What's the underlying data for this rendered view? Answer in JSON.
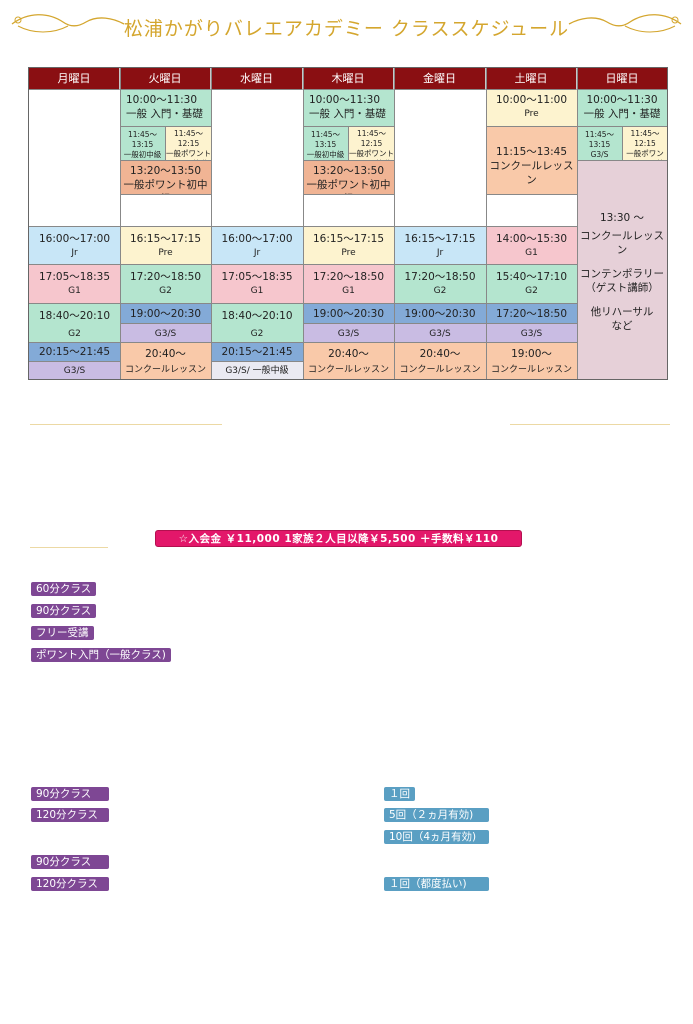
{
  "title": "松浦かがりバレエアカデミー クラススケジュール",
  "colors": {
    "header_bg": "#8a0f12",
    "title": "#d4a62e",
    "fee_banner": "#e3176a",
    "tag_purple": "#7e4794",
    "tag_teal": "#5a9fc3"
  },
  "days": [
    "月曜日",
    "火曜日",
    "水曜日",
    "木曜日",
    "金曜日",
    "土曜日",
    "日曜日"
  ],
  "cells": {
    "tue_1_time": "10:00～11:30",
    "tue_1_class": "一般 入門・基礎",
    "tue_2a_time": "11:45～13:15",
    "tue_2a_class": "一般初中級",
    "tue_2b_time": "11:45～12:15",
    "tue_2b_class": "一般ポワント入門・基礎",
    "tue_3_time": "13:20～13:50",
    "tue_3_class": "一般ポワント初中級",
    "thu_1_time": "10:00～11:30",
    "thu_1_class": "一般 入門・基礎",
    "thu_2a_time": "11:45～13:15",
    "thu_2a_class": "一般初中級",
    "thu_2b_time": "11:45～12:15",
    "thu_2b_class": "一般ポワント入門・基礎",
    "thu_3_time": "13:20～13:50",
    "thu_3_class": "一般ポワント初中級",
    "sat_1_time": "10:00～11:00",
    "sat_1_class": "Pre",
    "sat_2_time": "11:15～13:45",
    "sat_2_class": "コンクールレッスン",
    "sun_1_time": "10:00～11:30",
    "sun_1_class": "一般 入門・基礎",
    "sun_2a_time": "11:45～13:15",
    "sun_2a_class": "G3/S",
    "sun_2b_time": "11:45～12:15",
    "sun_2b_class": "一般ポワント入門・基礎",
    "sun_3_line1": "13:30 ～",
    "sun_3_line2": "コンクールレッスン",
    "sun_3_line3": "コンテンポラリー",
    "sun_3_line4": "（ゲスト講師）",
    "sun_3_line5": "他リハーサル",
    "sun_3_line6": "など",
    "mon_a_time": "16:00～17:00",
    "mon_a_class": "Jr",
    "tue_a_time": "16:15～17:15",
    "tue_a_class": "Pre",
    "wed_a_time": "16:00～17:00",
    "wed_a_class": "Jr",
    "thu_a_time": "16:15～17:15",
    "thu_a_class": "Pre",
    "fri_a_time": "16:15～17:15",
    "fri_a_class": "Jr",
    "sat_a_time": "14:00～15:30",
    "sat_a_class": "G1",
    "mon_b_time": "17:05～18:35",
    "mon_b_class": "G1",
    "tue_b_time": "17:20～18:50",
    "tue_b_class": "G2",
    "wed_b_time": "17:05～18:35",
    "wed_b_class": "G1",
    "thu_b_time": "17:20～18:50",
    "thu_b_class": "G1",
    "fri_b_time": "17:20～18:50",
    "fri_b_class": "G2",
    "sat_b_time": "15:40～17:10",
    "sat_b_class": "G2",
    "mon_c_time": "18:40～20:10",
    "mon_c_class": "G2",
    "tue_c_time": "19:00～20:30",
    "tue_c_class": "G3/S",
    "wed_c_time": "18:40～20:10",
    "wed_c_class": "G2",
    "thu_c_time": "19:00～20:30",
    "thu_c_class": "G3/S",
    "fri_c_time": "19:00～20:30",
    "fri_c_class": "G3/S",
    "sat_c_time": "17:20～18:50",
    "sat_c_class": "G3/S",
    "mon_d_time": "20:15～21:45",
    "mon_d_class": "G3/S",
    "tue_d_time": "20:40～",
    "tue_d_class": "コンクールレッスン",
    "wed_d_time": "20:15～21:45",
    "wed_d_class": "G3/S/ 一般中級",
    "thu_d_time": "20:40～",
    "thu_d_class": "コンクールレッスン",
    "fri_d_time": "20:40～",
    "fri_d_class": "コンクールレッスン",
    "sat_d_time": "19:00～",
    "sat_d_class": "コンクールレッスン"
  },
  "fee_banner": "☆入会金 ￥11,000 1家族２人目以降￥5,500 ＋手数料￥110",
  "class_tags": [
    "60分クラス",
    "90分クラス",
    "フリー受講",
    "ポワント入門（一般クラス)"
  ],
  "lower_left_tags": [
    "90分クラス",
    "120分クラス",
    "90分クラス",
    "120分クラス"
  ],
  "lower_right_tags": [
    "１回",
    "5回（２ヵ月有効)",
    "10回（4ヵ月有効)",
    "１回（都度払い)"
  ]
}
